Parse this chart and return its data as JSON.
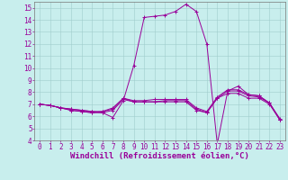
{
  "xlabel": "Windchill (Refroidissement éolien,°C)",
  "bg_color": "#c8eeed",
  "grid_color": "#a0cccc",
  "line_color": "#990099",
  "marker": "+",
  "xlim": [
    -0.5,
    23.5
  ],
  "ylim": [
    4,
    15.5
  ],
  "yticks": [
    4,
    5,
    6,
    7,
    8,
    9,
    10,
    11,
    12,
    13,
    14,
    15
  ],
  "xticks": [
    0,
    1,
    2,
    3,
    4,
    5,
    6,
    7,
    8,
    9,
    10,
    11,
    12,
    13,
    14,
    15,
    16,
    17,
    18,
    19,
    20,
    21,
    22,
    23
  ],
  "lines": [
    [
      7.0,
      6.9,
      6.7,
      6.6,
      6.5,
      6.4,
      6.3,
      5.9,
      7.3,
      10.2,
      14.2,
      14.3,
      14.4,
      14.7,
      15.3,
      14.7,
      12.0,
      3.7,
      8.1,
      8.5,
      7.8,
      7.7,
      7.1,
      5.7
    ],
    [
      7.0,
      6.9,
      6.7,
      6.6,
      6.5,
      6.4,
      6.4,
      6.6,
      7.5,
      7.2,
      7.2,
      7.2,
      7.3,
      7.3,
      7.3,
      6.6,
      6.3,
      7.5,
      8.1,
      8.1,
      7.7,
      7.6,
      7.1,
      5.7
    ],
    [
      7.0,
      6.9,
      6.7,
      6.5,
      6.4,
      6.3,
      6.4,
      6.7,
      7.5,
      7.3,
      7.3,
      7.4,
      7.4,
      7.4,
      7.4,
      6.7,
      6.4,
      7.6,
      8.2,
      8.2,
      7.8,
      7.7,
      7.1,
      5.8
    ],
    [
      7.0,
      6.9,
      6.7,
      6.5,
      6.4,
      6.3,
      6.3,
      6.5,
      7.4,
      7.2,
      7.2,
      7.2,
      7.2,
      7.2,
      7.2,
      6.5,
      6.3,
      7.5,
      7.9,
      7.9,
      7.5,
      7.5,
      7.0,
      5.7
    ]
  ],
  "xlabel_fontsize": 6.5,
  "tick_fontsize": 5.5,
  "figsize": [
    3.2,
    2.0
  ],
  "dpi": 100,
  "linewidth": 0.7,
  "markersize": 2.5,
  "markeredgewidth": 0.7
}
